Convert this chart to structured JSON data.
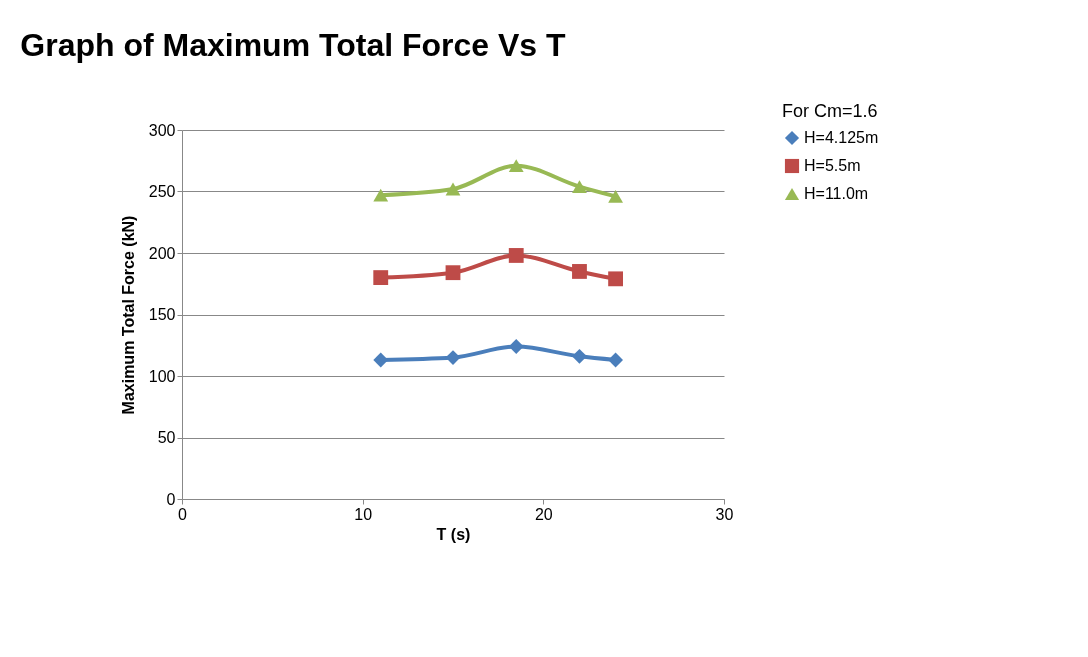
{
  "chart_data": {
    "type": "line",
    "title": "Graph of Maximum Total Force Vs T",
    "xlabel": "T (s)",
    "ylabel": "Maximum Total Force (kN)",
    "x": [
      11,
      15,
      18.5,
      22,
      24
    ],
    "series": [
      {
        "name": "H=4.125m",
        "color": "#4a7ebb",
        "marker": "diamond",
        "values": [
          113,
          115,
          124,
          116,
          113
        ]
      },
      {
        "name": "H=5.5m",
        "color": "#be4b48",
        "marker": "square",
        "values": [
          180,
          184,
          198,
          185,
          179
        ]
      },
      {
        "name": "H=11.0m",
        "color": "#98b954",
        "marker": "triangle",
        "values": [
          247,
          252,
          271,
          254,
          246
        ]
      }
    ],
    "xlim": [
      0,
      30
    ],
    "xticks": [
      0,
      10,
      20,
      30
    ],
    "ylim": [
      0,
      300
    ],
    "yticks": [
      0,
      50,
      100,
      150,
      200,
      250,
      300
    ],
    "grid": "y",
    "legend": "right",
    "line_style": "solid",
    "annotations": [
      "For Cm=1.6"
    ]
  }
}
